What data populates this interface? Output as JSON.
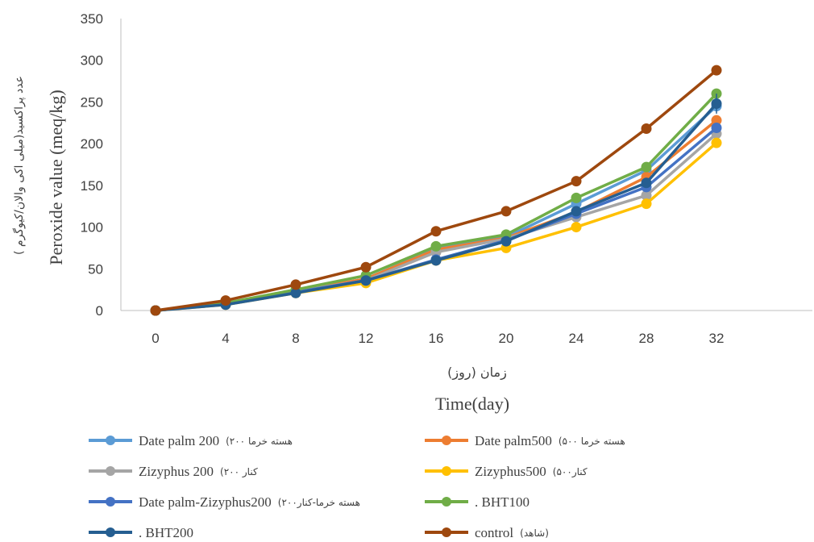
{
  "chart_data": {
    "type": "line",
    "xlabel_fa": "زمان (روز)",
    "xlabel": "Time(day)",
    "ylabel_fa": "عدد پراکسید(میلی اکی والان/کیوگرم )",
    "ylabel": "Peroxide value (meq/kg)",
    "x": [
      0,
      4,
      8,
      12,
      16,
      20,
      24,
      28,
      32
    ],
    "xlim": [
      0,
      36
    ],
    "ylim": [
      0,
      350
    ],
    "yticks": [
      0,
      50,
      100,
      150,
      200,
      250,
      300,
      350
    ],
    "grid": false,
    "legend_position": "bottom",
    "series": [
      {
        "name": "Date palm 200",
        "name_fa": "(هسته خرما ۲۰۰",
        "color": "#5b9bd5",
        "values": [
          0,
          8,
          23,
          38,
          74,
          88,
          128,
          168,
          245
        ]
      },
      {
        "name": "Date palm500",
        "name_fa": "(هسته خرما ۵۰۰",
        "color": "#ed7d31",
        "values": [
          0,
          8,
          23,
          38,
          73,
          87,
          118,
          160,
          228
        ]
      },
      {
        "name": "Zizyphus 200",
        "name_fa": "(کنار ۲۰۰",
        "color": "#a5a5a5",
        "values": [
          0,
          8,
          23,
          36,
          70,
          86,
          112,
          138,
          212
        ]
      },
      {
        "name": "Zizyphus500",
        "name_fa": "(کنار۵۰۰",
        "color": "#ffc000",
        "values": [
          0,
          7,
          21,
          33,
          60,
          75,
          100,
          128,
          201
        ]
      },
      {
        "name": "Date palm-Zizyphus200",
        "name_fa": "(هسته خرما-کنار۲۰۰",
        "color": "#4472c4",
        "values": [
          0,
          8,
          22,
          36,
          61,
          84,
          116,
          148,
          219
        ]
      },
      {
        "name": ". BHT100",
        "name_fa": "",
        "color": "#70ad47",
        "values": [
          0,
          9,
          25,
          42,
          77,
          91,
          135,
          172,
          260
        ]
      },
      {
        "name": ". BHT200",
        "name_fa": "",
        "color": "#255e91",
        "values": [
          0,
          7,
          21,
          36,
          60,
          83,
          119,
          153,
          248
        ]
      },
      {
        "name": "control",
        "name_fa": "(شاهد)",
        "color": "#9e480e",
        "values": [
          0,
          12,
          31,
          52,
          95,
          119,
          155,
          218,
          288
        ]
      }
    ],
    "error_bars_last_point": [
      0,
      0,
      0,
      0,
      0,
      0,
      12,
      0
    ]
  }
}
